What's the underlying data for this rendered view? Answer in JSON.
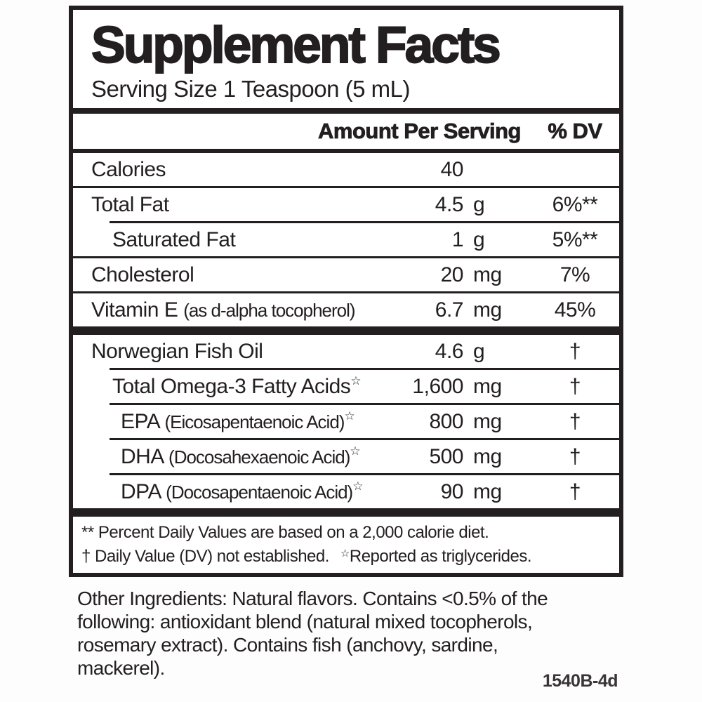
{
  "colors": {
    "ink": "#231f20",
    "background": "#ffffff"
  },
  "label": {
    "title": "Supplement Facts",
    "serving_size": "Serving Size 1 Teaspoon (5 mL)",
    "header": {
      "amount": "Amount Per Serving",
      "dv": "% DV"
    },
    "rows": [
      {
        "name": "Calories",
        "note": "",
        "star": "",
        "value": "40",
        "unit": "",
        "dv": "",
        "indent": 0
      },
      {
        "name": "Total Fat",
        "note": "",
        "star": "",
        "value": "4.5",
        "unit": "g",
        "dv": "6%**",
        "indent": 0
      },
      {
        "name": "Saturated Fat",
        "note": "",
        "star": "",
        "value": "1",
        "unit": "g",
        "dv": "5%**",
        "indent": 1
      },
      {
        "name": "Cholesterol",
        "note": "",
        "star": "",
        "value": "20",
        "unit": "mg",
        "dv": "7%",
        "indent": 0
      },
      {
        "name": "Vitamin E",
        "note": "(as d-alpha tocopherol)",
        "star": "",
        "value": "6.7",
        "unit": "mg",
        "dv": "45%",
        "indent": 0
      },
      {
        "name": "Norwegian Fish Oil",
        "note": "",
        "star": "",
        "value": "4.6",
        "unit": "g",
        "dv": "†",
        "indent": 0
      },
      {
        "name": "Total Omega-3 Fatty Acids",
        "note": "",
        "star": "☆",
        "value": "1,600",
        "unit": "mg",
        "dv": "†",
        "indent": 1
      },
      {
        "name": "EPA",
        "note": "(Eicosapentaenoic Acid)",
        "star": "☆",
        "value": "800",
        "unit": "mg",
        "dv": "†",
        "indent": 2
      },
      {
        "name": "DHA",
        "note": "(Docosahexaenoic Acid)",
        "star": "☆",
        "value": "500",
        "unit": "mg",
        "dv": "†",
        "indent": 2
      },
      {
        "name": "DPA",
        "note": "(Docosapentaenoic Acid)",
        "star": "☆",
        "value": "90",
        "unit": "mg",
        "dv": "†",
        "indent": 2
      }
    ],
    "footnotes": {
      "line1": "** Percent Daily Values are based on a 2,000 calorie diet.",
      "line2_prefix": "† Daily Value (DV) not established.",
      "line2_star": "☆",
      "line2_suffix": "Reported as triglycerides."
    }
  },
  "other_ingredients": {
    "full_text": "Other Ingredients: Natural flavors. Contains <0.5% of the following: antioxidant blend (natural mixed tocopherols, rosemary extract). Contains fish (anchovy, sardine, mackerel).",
    "lines": [
      "Other Ingredients: Natural flavors. Contains <0.5% of the",
      "following: antioxidant blend (natural mixed tocopherols,",
      "rosemary extract). Contains fish (anchovy, sardine,",
      "mackerel)."
    ]
  },
  "item_code": "1540B-4d"
}
